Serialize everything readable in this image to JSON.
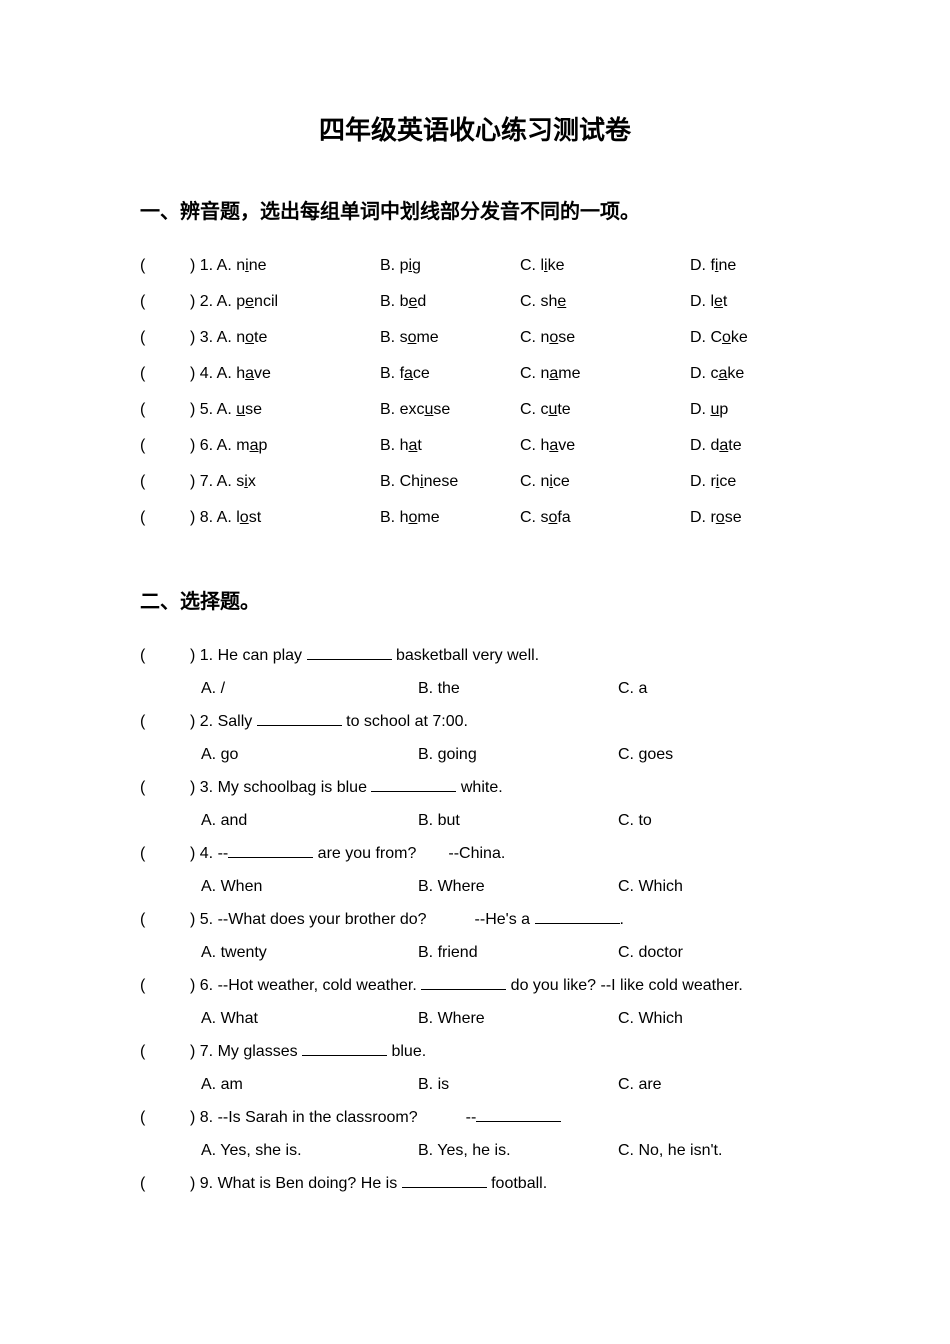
{
  "title": "四年级英语收心练习测试卷",
  "section1": {
    "title": "一、辨音题，选出每组单词中划线部分发音不同的一项。",
    "rows": [
      {
        "n": "1",
        "a_pre": "n",
        "a_u": "i",
        "a_post": "ne",
        "b_pre": "p",
        "b_u": "i",
        "b_post": "g",
        "c_pre": "l",
        "c_u": "i",
        "c_post": "ke",
        "d_pre": "f",
        "d_u": "i",
        "d_post": "ne"
      },
      {
        "n": "2",
        "a_pre": "p",
        "a_u": "e",
        "a_post": "ncil",
        "b_pre": "b",
        "b_u": "e",
        "b_post": "d",
        "c_pre": "sh",
        "c_u": "e",
        "c_post": "",
        "d_pre": "l",
        "d_u": "e",
        "d_post": "t"
      },
      {
        "n": "3",
        "a_pre": "n",
        "a_u": "o",
        "a_post": "te",
        "b_pre": "s",
        "b_u": "o",
        "b_post": "me",
        "c_pre": "n",
        "c_u": "o",
        "c_post": "se",
        "d_pre": "C",
        "d_u": "o",
        "d_post": "ke"
      },
      {
        "n": "4",
        "a_pre": "h",
        "a_u": "a",
        "a_post": "ve",
        "b_pre": "f",
        "b_u": "a",
        "b_post": "ce",
        "c_pre": "n",
        "c_u": "a",
        "c_post": "me",
        "d_pre": "c",
        "d_u": "a",
        "d_post": "ke"
      },
      {
        "n": "5",
        "a_pre": "",
        "a_u": "u",
        "a_post": "se",
        "b_pre": "exc",
        "b_u": "u",
        "b_post": "se",
        "c_pre": "c",
        "c_u": "u",
        "c_post": "te",
        "d_pre": "",
        "d_u": "u",
        "d_post": "p"
      },
      {
        "n": "6",
        "a_pre": "m",
        "a_u": "a",
        "a_post": "p",
        "b_pre": "h",
        "b_u": "a",
        "b_post": "t",
        "c_pre": "h",
        "c_u": "a",
        "c_post": "ve",
        "d_pre": "d",
        "d_u": "a",
        "d_post": "te"
      },
      {
        "n": "7",
        "a_pre": "s",
        "a_u": "i",
        "a_post": "x",
        "b_pre": "Ch",
        "b_u": "i",
        "b_post": "nese",
        "c_pre": "n",
        "c_u": "i",
        "c_post": "ce",
        "d_pre": "r",
        "d_u": "i",
        "d_post": "ce"
      },
      {
        "n": "8",
        "a_pre": "l",
        "a_u": "o",
        "a_post": "st",
        "b_pre": "h",
        "b_u": "o",
        "b_post": "me",
        "c_pre": "s",
        "c_u": "o",
        "c_post": "fa",
        "d_pre": "r",
        "d_u": "o",
        "d_post": "se"
      }
    ]
  },
  "section2": {
    "title": "二、选择题。",
    "questions": [
      {
        "n": "1",
        "q_pre": "He can play ",
        "q_post": " basketball very well.",
        "a": "A. /",
        "b": "B. the",
        "c": "C. a"
      },
      {
        "n": "2",
        "q_pre": "Sally ",
        "q_post": " to school at 7:00.",
        "a": "A. go",
        "b": "B. going",
        "c": "C. goes"
      },
      {
        "n": "3",
        "q_pre": "My schoolbag is blue ",
        "q_post": " white.",
        "a": "A. and",
        "b": "B. but",
        "c": "C. to"
      },
      {
        "n": "4",
        "q_pre": "--",
        "q_post": " are you from?  --China.",
        "a": "A. When",
        "b": "B. Where",
        "c": "C. Which"
      },
      {
        "n": "5",
        "q_pre": "--What does your brother do?   --He's a ",
        "q_post": ".",
        "a": "A. twenty",
        "b": "B. friend",
        "c": "C. doctor"
      },
      {
        "n": "6",
        "q_pre": "--Hot weather, cold weather. ",
        "q_post": " do you like? --I like cold weather.",
        "a": "A. What",
        "b": "B. Where",
        "c": "C. Which"
      },
      {
        "n": "7",
        "q_pre": "My glasses ",
        "q_post": " blue.",
        "a": "A. am",
        "b": "B. is",
        "c": "C. are"
      },
      {
        "n": "8",
        "q_pre": "--Is Sarah in the classroom?   --",
        "q_post": "",
        "a": "A. Yes, she is.",
        "b": "B. Yes, he is.",
        "c": "C. No, he isn't."
      },
      {
        "n": "9",
        "q_pre": "What is Ben doing? He is ",
        "q_post": " football.",
        "a": "",
        "b": "",
        "c": ""
      }
    ]
  },
  "paren_open": "(",
  "paren_close": ") ",
  "label_a": "A. ",
  "label_b": "B. ",
  "label_c": "C. ",
  "label_d": "D. "
}
